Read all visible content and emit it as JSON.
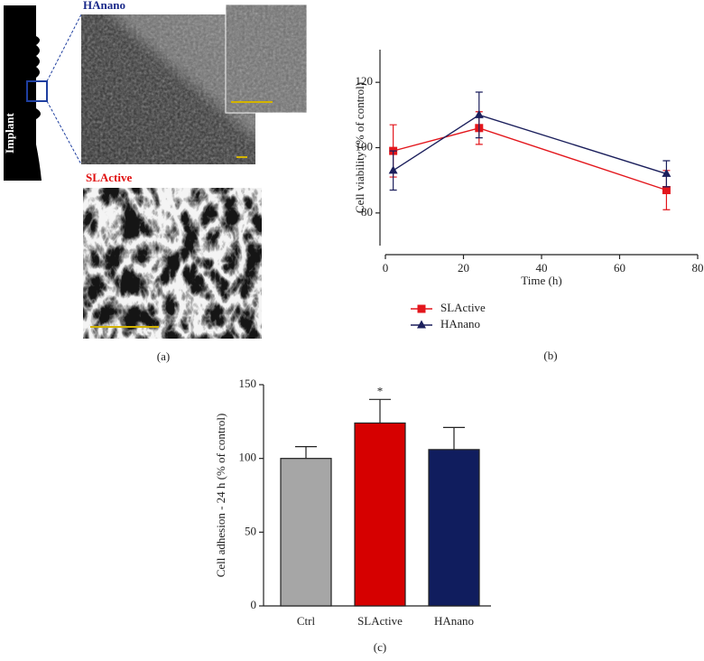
{
  "panel_a": {
    "hanano_label": "HAnano",
    "slactive_label": "SLActive",
    "implant_label": "Implant",
    "panel_label": "(a)"
  },
  "chart_data": [
    {
      "type": "line",
      "panel_label": "(b)",
      "x_label": "Time (h)",
      "y_label": "Cell viability (% of control)",
      "xlim": [
        0,
        80
      ],
      "xticks": [
        0,
        20,
        40,
        60,
        80
      ],
      "ylim": [
        70,
        130
      ],
      "yticks": [
        80,
        100,
        120
      ],
      "legend": "bottom",
      "series": [
        {
          "name": "SLActive",
          "color": "#e3161c",
          "marker": "square",
          "x": [
            2,
            24,
            72
          ],
          "values": [
            99,
            106,
            87
          ],
          "errors": [
            8,
            5,
            6
          ]
        },
        {
          "name": "HAnano",
          "color": "#1b1f5c",
          "marker": "triangle",
          "x": [
            2,
            24,
            72
          ],
          "values": [
            93,
            110,
            92
          ],
          "errors": [
            6,
            7,
            4
          ]
        }
      ]
    },
    {
      "type": "bar",
      "panel_label": "(c)",
      "y_label": "Cell adhesion - 24 h (% of control)",
      "categories": [
        "Ctrl",
        "SLActive",
        "HAnano"
      ],
      "values": [
        100,
        124,
        106
      ],
      "errors": [
        8,
        16,
        15
      ],
      "colors": [
        "#a6a6a6",
        "#d60000",
        "#101d5e"
      ],
      "annotations": [
        null,
        "*",
        null
      ],
      "ylim": [
        0,
        150
      ],
      "yticks": [
        0,
        50,
        100,
        150
      ]
    }
  ]
}
